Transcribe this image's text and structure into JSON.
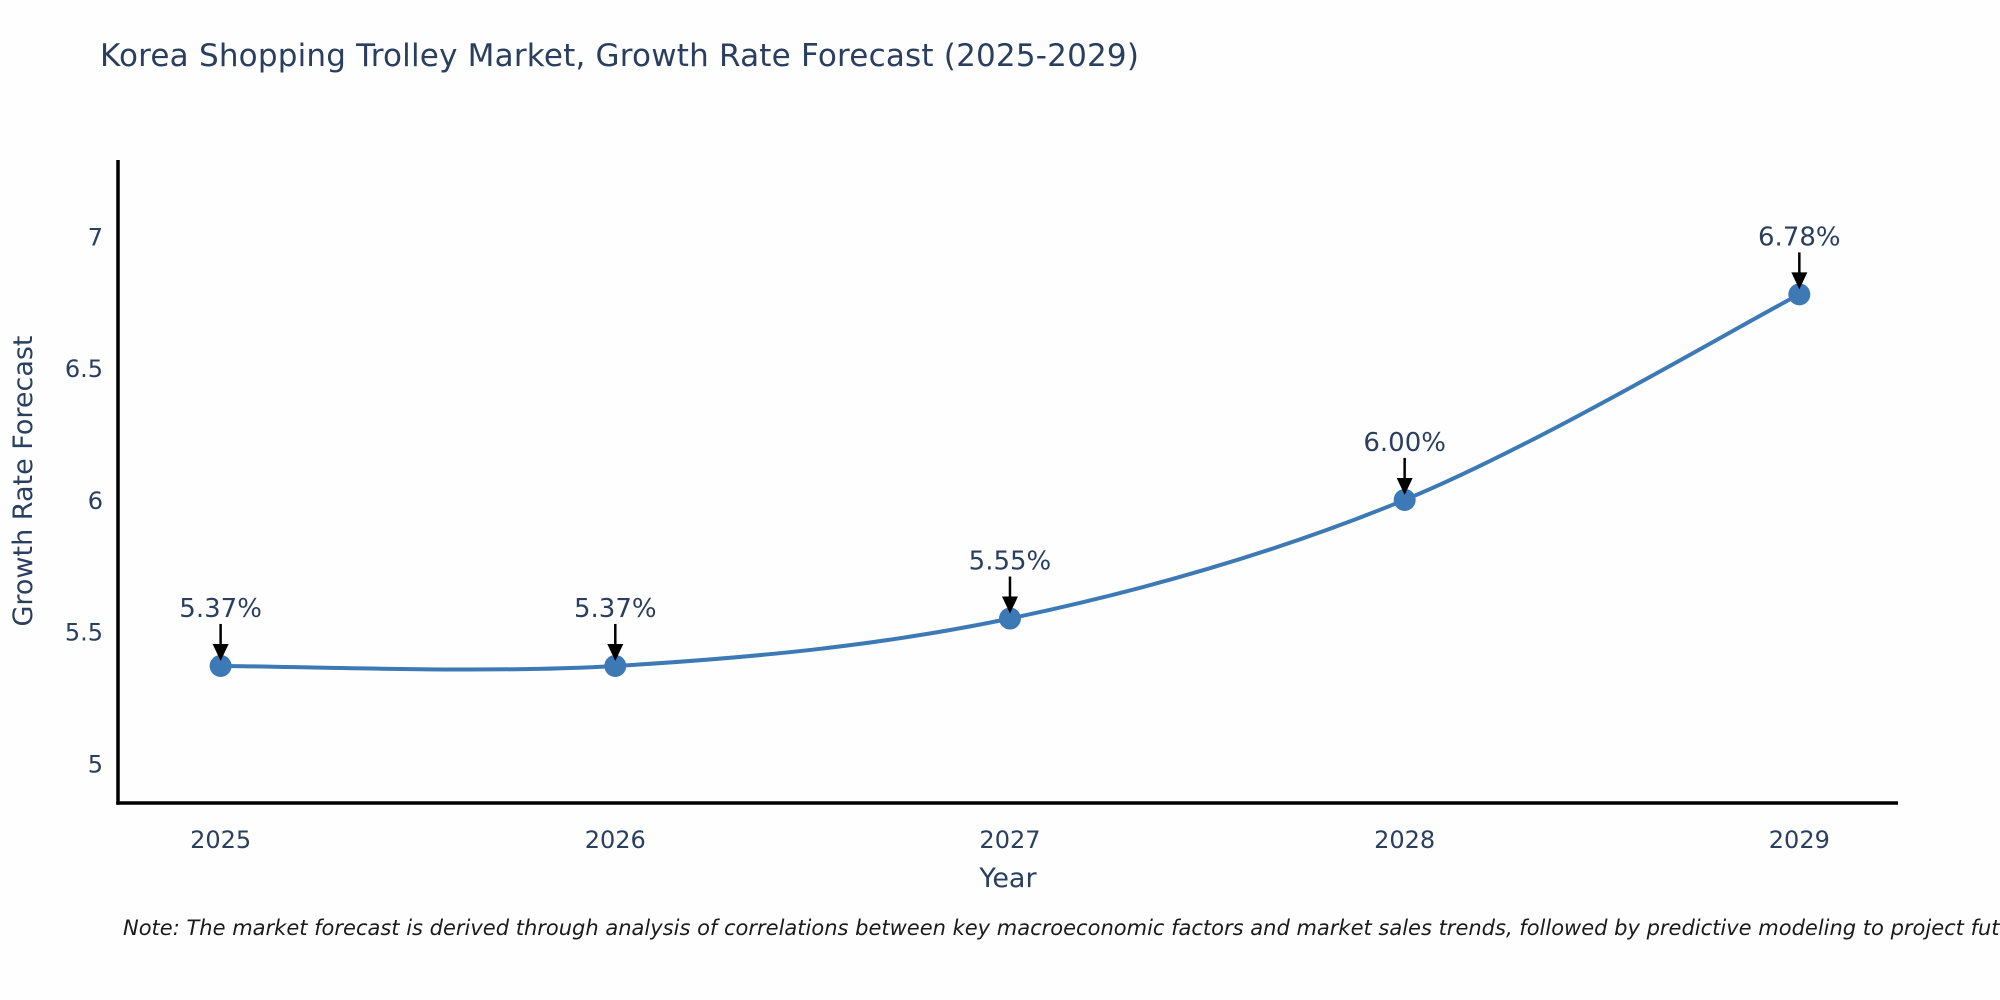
{
  "title": "Korea Shopping Trolley Market, Growth Rate Forecast (2025-2029)",
  "note": "Note: The market forecast is derived through analysis of correlations between key macroeconomic factors and market sales trends, followed by predictive modeling to project future sales",
  "chart_data": {
    "type": "line",
    "title": "Korea Shopping Trolley Market, Growth Rate Forecast (2025-2029)",
    "x": [
      2025,
      2026,
      2027,
      2028,
      2029
    ],
    "values": [
      5.37,
      5.37,
      5.55,
      6.0,
      6.78
    ],
    "point_labels": [
      "5.37%",
      "5.37%",
      "5.55%",
      "6.00%",
      "6.78%"
    ],
    "x_tick_labels": [
      "2025",
      "2026",
      "2027",
      "2028",
      "2029"
    ],
    "y_ticks": [
      5,
      5.5,
      6,
      6.5,
      7
    ],
    "y_tick_labels": [
      "5",
      "5.5",
      "6",
      "6.5",
      "7"
    ],
    "xlabel": "Year",
    "ylabel": "Growth Rate Forecast",
    "xlim": [
      2024.74,
      2029.25
    ],
    "ylim": [
      4.85,
      7.29
    ],
    "line_shape": "spline",
    "grid": false,
    "legend": "none",
    "colors": {
      "line": "#3d7ab5",
      "marker": "#3d7ab5",
      "axis": "#000000",
      "arrow": "#000000",
      "tick_text": "#2a3f5f",
      "title_text": "#2a3f5f",
      "note_text": "#1a1a1a"
    }
  }
}
